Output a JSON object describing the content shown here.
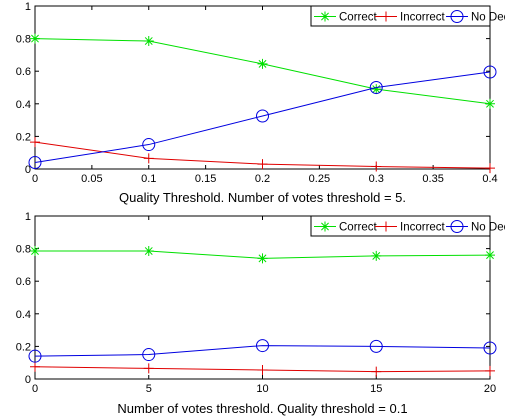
{
  "chart_data": [
    {
      "type": "line",
      "xlabel": "Quality Threshold. Number of votes threshold = 5.",
      "ylabel": "",
      "x": [
        0,
        0.1,
        0.2,
        0.3,
        0.4
      ],
      "xticks": [
        "0",
        "0.05",
        "0.1",
        "0.15",
        "0.2",
        "0.25",
        "0.3",
        "0.35",
        "0.4"
      ],
      "xlim": [
        0,
        0.4
      ],
      "yticks": [
        "0",
        "0.2",
        "0.4",
        "0.6",
        "0.8",
        "1"
      ],
      "ylim": [
        0,
        1
      ],
      "grid": false,
      "legend_position": "top-right",
      "series": [
        {
          "name": "Correct",
          "color": "#00e000",
          "marker": "star",
          "values": [
            0.8,
            0.785,
            0.645,
            0.49,
            0.4
          ]
        },
        {
          "name": "Incorrect",
          "color": "#e00000",
          "marker": "plus",
          "values": [
            0.165,
            0.065,
            0.03,
            0.015,
            0.005
          ]
        },
        {
          "name": "No Decision",
          "color": "#0000e0",
          "marker": "circle",
          "values": [
            0.04,
            0.15,
            0.325,
            0.5,
            0.595
          ]
        }
      ]
    },
    {
      "type": "line",
      "xlabel": "Number of votes threshold. Quality threshold = 0.1",
      "ylabel": "",
      "x": [
        0,
        5,
        10,
        15,
        20
      ],
      "xticks": [
        "0",
        "5",
        "10",
        "15",
        "20"
      ],
      "xlim": [
        0,
        20
      ],
      "yticks": [
        "0",
        "0.2",
        "0.4",
        "0.6",
        "0.8",
        "1"
      ],
      "ylim": [
        0,
        1
      ],
      "grid": false,
      "legend_position": "top-right",
      "series": [
        {
          "name": "Correct",
          "color": "#00e000",
          "marker": "star",
          "values": [
            0.785,
            0.785,
            0.74,
            0.755,
            0.76
          ]
        },
        {
          "name": "Incorrect",
          "color": "#e00000",
          "marker": "plus",
          "values": [
            0.075,
            0.065,
            0.055,
            0.045,
            0.05
          ]
        },
        {
          "name": "No Decision",
          "color": "#0000e0",
          "marker": "circle",
          "values": [
            0.14,
            0.15,
            0.205,
            0.2,
            0.19
          ]
        }
      ]
    }
  ]
}
